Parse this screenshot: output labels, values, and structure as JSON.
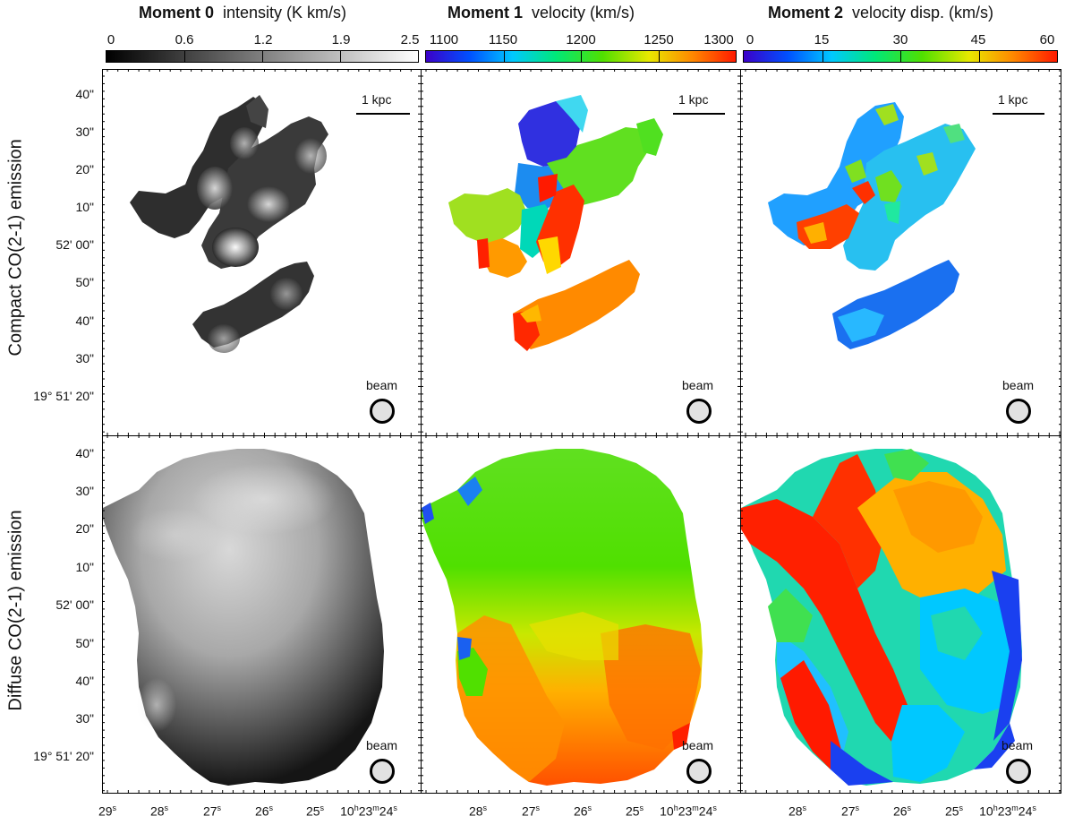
{
  "columns": [
    {
      "title_bold": "Moment 0",
      "title_rest": "intensity (K km/s)",
      "colorbar_labels": [
        "0",
        "0.6",
        "1.2",
        "1.9",
        "2.5"
      ],
      "colormap": "grayscale"
    },
    {
      "title_bold": "Moment 1",
      "title_rest": "velocity (km/s)",
      "colorbar_labels": [
        "1100",
        "1150",
        "1200",
        "1250",
        "1300"
      ],
      "colormap": "rainbow"
    },
    {
      "title_bold": "Moment 2",
      "title_rest": "velocity disp. (km/s)",
      "colorbar_labels": [
        "0",
        "15",
        "30",
        "45",
        "60"
      ],
      "colormap": "rainbow"
    }
  ],
  "rows": [
    {
      "label": "Compact CO(2-1) emission"
    },
    {
      "label": "Diffuse CO(2-1) emission"
    }
  ],
  "y_axis_ticks": [
    "40\"",
    "30\"",
    "20\"",
    "10\"",
    "52' 00\"",
    "50\"",
    "40\"",
    "30\"",
    "19° 51' 20\""
  ],
  "x_axis": {
    "panel1_ticks": [
      "29",
      "28",
      "27",
      "26",
      "25"
    ],
    "panel23_ticks": [
      "28",
      "27",
      "26",
      "25"
    ],
    "seconds_suffix": "s",
    "final_tick_hours": "10",
    "final_tick_minutes": "23",
    "final_tick_seconds": "24",
    "h": "h",
    "m": "m"
  },
  "scalebar_label": "1 kpc",
  "beam_label": "beam",
  "colors": {
    "rainbow_stops": [
      "#3b00c8",
      "#0050ff",
      "#00c8ff",
      "#00e878",
      "#50e000",
      "#e8e800",
      "#ff8800",
      "#ff1a00"
    ],
    "background": "#ffffff",
    "beam_fill": "#e2e2e2"
  }
}
